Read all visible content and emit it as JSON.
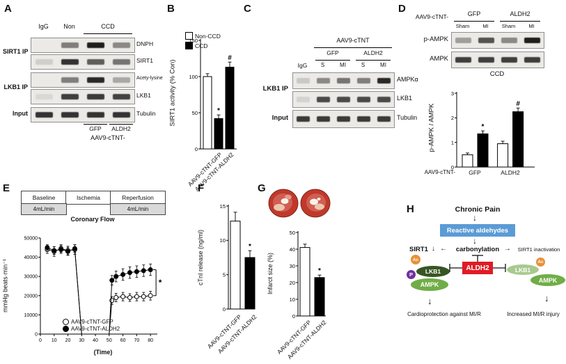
{
  "colors": {
    "blue": "#5b9bd5",
    "red": "#e01b24",
    "dark_green": "#375623",
    "green": "#70ad47",
    "pale_green": "#a9c98f",
    "purple": "#7030a0",
    "orange": "#e69138"
  },
  "glyphs": {
    "down_arrow": "↓",
    "left_arrow": "←",
    "right_arrow": "→"
  },
  "panelA": {
    "letter": "A",
    "headers": {
      "igg": "IgG",
      "non": "Non",
      "ccd": "CCD"
    },
    "left_labels": {
      "sirt1_ip": "SIRT1 IP",
      "lkb1_ip": "LKB1 IP",
      "input": "Input"
    },
    "rows": [
      {
        "label": "DNPH",
        "bands": [
          0,
          0.5,
          0.95,
          0.45
        ]
      },
      {
        "label": "SIRT1",
        "bands": [
          0.12,
          0.85,
          0.65,
          0.55
        ]
      },
      {
        "label": "Acety-lysine",
        "bands": [
          0,
          0.5,
          0.9,
          0.3
        ]
      },
      {
        "label": "LKB1",
        "bands": [
          0.08,
          0.8,
          0.82,
          0.78
        ]
      },
      {
        "label": "Tubulin",
        "bands": [
          0.85,
          0.85,
          0.85,
          0.85
        ]
      }
    ],
    "bottom": {
      "gfp": "GFP",
      "aldh2": "ALDH2",
      "vector": "AAV9-cTNT-"
    }
  },
  "panelB": {
    "letter": "B"
  },
  "panelC": {
    "letter": "C",
    "headers": {
      "vector": "AAV9-cTNT",
      "gfp": "GFP",
      "aldh2": "ALDH2",
      "igg": "IgG",
      "lanes": [
        "S",
        "MI",
        "S",
        "MI"
      ]
    },
    "left_labels": {
      "lkb1_ip": "LKB1 IP",
      "input": "Input"
    },
    "rows": [
      {
        "label": "AMPKα",
        "bands": [
          0.15,
          0.45,
          0.55,
          0.5,
          0.9
        ]
      },
      {
        "label": "LKB1",
        "bands": [
          0.1,
          0.75,
          0.75,
          0.75,
          0.75
        ]
      },
      {
        "label": "Tubulin",
        "bands": [
          0.82,
          0.82,
          0.82,
          0.82,
          0.82
        ]
      }
    ]
  },
  "panelD": {
    "letter": "D",
    "headers": {
      "vector": "AAV9-cTNT-",
      "gfp": "GFP",
      "aldh2": "ALDH2",
      "lanes": [
        "Sham",
        "MI",
        "Sham",
        "MI"
      ]
    },
    "rows": [
      {
        "label": "p-AMPK",
        "bands": [
          0.35,
          0.7,
          0.45,
          0.95
        ]
      },
      {
        "label": "AMPK",
        "bands": [
          0.8,
          0.8,
          0.8,
          0.8
        ]
      }
    ],
    "condition": "CCD"
  },
  "panelE": {
    "letter": "E",
    "timeline": {
      "baseline": "Baseline",
      "ischemia": "Ischemia",
      "reperfusion": "Reperfusion",
      "flow1": "4mL/min",
      "flow2": "4mL/min",
      "caption": "Coronary Flow"
    }
  },
  "panelF": {
    "letter": "F"
  },
  "panelG": {
    "letter": "G"
  },
  "panelH": {
    "letter": "H",
    "labels": {
      "chronic_pain": "Chronic Pain",
      "reactive_aldehydes": "Reactive aldehydes",
      "carbonylation": "carbonylation",
      "sirt1": "SIRT1",
      "sirt1_inactivation": "SIRT1 inactivation",
      "aldh2": "ALDH2",
      "lkb1_left": "LKB1",
      "ampk_left": "AMPK",
      "p": "P",
      "ac_left": "Ac",
      "lkb1_right": "LKB1",
      "ampk_right": "AMPK",
      "ac_right": "Ac",
      "outcome_left": "Cardioprotection against MI/R",
      "outcome_right": "Increased MI/R injury"
    }
  },
  "chart_data": [
    {
      "id": "sirt1-activity",
      "type": "bar",
      "ylabel": "SIRT1 activity (% Con)",
      "ylim": [
        0,
        150
      ],
      "yticks": [
        0,
        50,
        100,
        150
      ],
      "legend": [
        {
          "label": "Non-CCD",
          "fill": "white"
        },
        {
          "label": "CCD",
          "fill": "black"
        }
      ],
      "values": [
        100,
        42,
        113
      ],
      "errors": [
        4,
        5,
        7
      ],
      "colors": [
        "white",
        "black",
        "black"
      ],
      "annotations": [
        "",
        "*",
        "#"
      ],
      "xticklabels": [
        "AAV9-cTNT-GFP",
        "AAV9-cTNT-ALDH2"
      ]
    },
    {
      "id": "pampk-ampk-ratio",
      "type": "bar",
      "ylabel": "p-AMPK / AMPK",
      "ylim": [
        0,
        3
      ],
      "yticks": [
        0,
        1,
        2,
        3
      ],
      "values": [
        0.5,
        1.35,
        0.95,
        2.25
      ],
      "errors": [
        0.07,
        0.12,
        0.1,
        0.15
      ],
      "colors": [
        "white",
        "black",
        "white",
        "black"
      ],
      "annotations": [
        "",
        "*",
        "",
        "#"
      ],
      "positions": [
        0,
        1,
        2.3,
        3.3
      ],
      "axis_prefix": "AAV9-cTNT-",
      "group_labels": [
        "GFP",
        "ALDH2"
      ]
    },
    {
      "id": "cardiac-function",
      "type": "line",
      "ylabel": "mmHg·beats·min⁻¹",
      "xlabel": "(Time)",
      "ylim": [
        0,
        50000
      ],
      "yticks": [
        0,
        10000,
        20000,
        30000,
        40000,
        50000
      ],
      "xlim": [
        0,
        85
      ],
      "xticks": [
        0,
        10,
        20,
        30,
        40,
        50,
        60,
        70,
        80
      ],
      "significance": "*",
      "series": [
        {
          "name": "AAV9-cTNT-GFP",
          "marker": "open",
          "x": [
            5,
            10,
            15,
            20,
            25,
            30,
            50,
            52,
            55,
            60,
            65,
            70,
            75,
            80
          ],
          "y": [
            44000,
            43000,
            44500,
            43500,
            44000,
            0,
            0,
            17500,
            19000,
            19500,
            19000,
            19500,
            19500,
            20000
          ],
          "errors": [
            2000,
            2500,
            2000,
            2200,
            2500,
            0,
            0,
            2000,
            2200,
            2200,
            2000,
            2200,
            2200,
            2300
          ]
        },
        {
          "name": "AAV9-cTNT-ALDH2",
          "marker": "filled",
          "x": [
            5,
            10,
            15,
            20,
            25,
            30,
            50,
            52,
            55,
            60,
            65,
            70,
            75,
            80
          ],
          "y": [
            45000,
            43500,
            44000,
            43000,
            44500,
            0,
            0,
            28000,
            30000,
            31000,
            32000,
            32500,
            33000,
            33500
          ],
          "errors": [
            1500,
            2000,
            2000,
            2000,
            2000,
            0,
            0,
            2500,
            2800,
            3000,
            3000,
            3000,
            3000,
            3000
          ]
        }
      ]
    },
    {
      "id": "ctni-release",
      "type": "bar",
      "ylabel": "cTnI release (ng/ml)",
      "ylim": [
        0,
        15
      ],
      "yticks": [
        0,
        5,
        10,
        15
      ],
      "values": [
        12.8,
        7.5
      ],
      "errors": [
        1.3,
        1.0
      ],
      "colors": [
        "white",
        "black"
      ],
      "annotations": [
        "",
        "*"
      ],
      "xticklabels": [
        "AAV9-cTNT-GFP",
        "AAV9-cTNT-ALDH2"
      ]
    },
    {
      "id": "infarct-size",
      "type": "bar",
      "ylabel": "Infarct size (%)",
      "ylim": [
        0,
        50
      ],
      "yticks": [
        0,
        10,
        20,
        30,
        40,
        50
      ],
      "values": [
        41,
        23
      ],
      "errors": [
        2,
        1.5
      ],
      "colors": [
        "white",
        "black"
      ],
      "annotations": [
        "",
        "*"
      ],
      "xticklabels": [
        "AAV9-cTNT-GFP",
        "AAV9-cTNT-ALDH2"
      ]
    }
  ]
}
